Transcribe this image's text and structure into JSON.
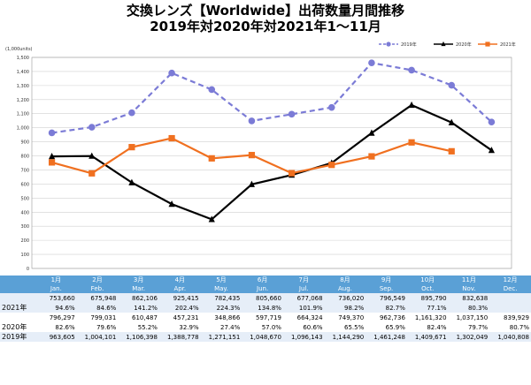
{
  "title_line1": "交換レンズ【Worldwide】出荷数量月間推移",
  "title_line2": "2019年対2020年対2021年1～11月",
  "chart_data": {
    "type": "line",
    "unit_label": "(1,000units)",
    "ylim": [
      0,
      1500
    ],
    "yticks": [
      0,
      100,
      200,
      300,
      400,
      500,
      600,
      700,
      800,
      900,
      1000,
      1100,
      1200,
      1300,
      1400,
      1500
    ],
    "ytick_labels": [
      "0",
      "100",
      "200",
      "300",
      "400",
      "500",
      "600",
      "700",
      "800",
      "900",
      "1,000",
      "1,100",
      "1,200",
      "1,300",
      "1,400",
      "1,500"
    ],
    "grid": true,
    "legend_position": "top-right",
    "categories": [
      "1",
      "2",
      "3",
      "4",
      "5",
      "6",
      "7",
      "8",
      "9",
      "10",
      "11",
      "12"
    ],
    "series": [
      {
        "name": "2019年",
        "color": "#7b7bd6",
        "dashed": true,
        "marker": "circle",
        "values": [
          963.605,
          1004.101,
          1106.398,
          1388.778,
          1271.151,
          1048.67,
          1096.143,
          1144.29,
          1461.248,
          1409.671,
          1302.049,
          1040.808
        ]
      },
      {
        "name": "2020年",
        "color": "#000000",
        "dashed": false,
        "marker": "triangle",
        "values": [
          796.297,
          799.031,
          610.487,
          457.231,
          348.866,
          597.719,
          664.324,
          749.37,
          962.736,
          1161.32,
          1037.15,
          839.929
        ]
      },
      {
        "name": "2021年",
        "color": "#f07020",
        "dashed": false,
        "marker": "square",
        "values": [
          753.66,
          675.948,
          862.106,
          925.415,
          782.435,
          805.66,
          677.068,
          736.02,
          796.549,
          895.79,
          832.638,
          null
        ]
      }
    ]
  },
  "table": {
    "months": [
      {
        "ja": "1月",
        "en": "Jan."
      },
      {
        "ja": "2月",
        "en": "Feb."
      },
      {
        "ja": "3月",
        "en": "Mar."
      },
      {
        "ja": "4月",
        "en": "Apr."
      },
      {
        "ja": "5月",
        "en": "May."
      },
      {
        "ja": "6月",
        "en": "Jun."
      },
      {
        "ja": "7月",
        "en": "Jul."
      },
      {
        "ja": "8月",
        "en": "Aug."
      },
      {
        "ja": "9月",
        "en": "Sep."
      },
      {
        "ja": "10月",
        "en": "Oct."
      },
      {
        "ja": "11月",
        "en": "Nov."
      },
      {
        "ja": "12月",
        "en": "Dec."
      }
    ],
    "row_2021": {
      "label": "2021年",
      "values": [
        "753,660",
        "675,948",
        "862,106",
        "925,415",
        "782,435",
        "805,660",
        "677,068",
        "736,020",
        "796,549",
        "895,790",
        "832,638",
        ""
      ],
      "pct": [
        "94.6%",
        "84.6%",
        "141.2%",
        "202.4%",
        "224.3%",
        "134.8%",
        "101.9%",
        "98.2%",
        "82.7%",
        "77.1%",
        "80.3%",
        ""
      ]
    },
    "row_2020": {
      "label": "2020年",
      "values": [
        "796,297",
        "799,031",
        "610,487",
        "457,231",
        "348,866",
        "597,719",
        "664,324",
        "749,370",
        "962,736",
        "1,161,320",
        "1,037,150",
        "839,929"
      ],
      "pct": [
        "82.6%",
        "79.6%",
        "55.2%",
        "32.9%",
        "27.4%",
        "57.0%",
        "60.6%",
        "65.5%",
        "65.9%",
        "82.4%",
        "79.7%",
        "80.7%"
      ]
    },
    "row_2019": {
      "label": "2019年",
      "values": [
        "963,605",
        "1,004,101",
        "1,106,398",
        "1,388,778",
        "1,271,151",
        "1,048,670",
        "1,096,143",
        "1,144,290",
        "1,461,248",
        "1,409,671",
        "1,302,049",
        "1,040,808"
      ]
    }
  }
}
